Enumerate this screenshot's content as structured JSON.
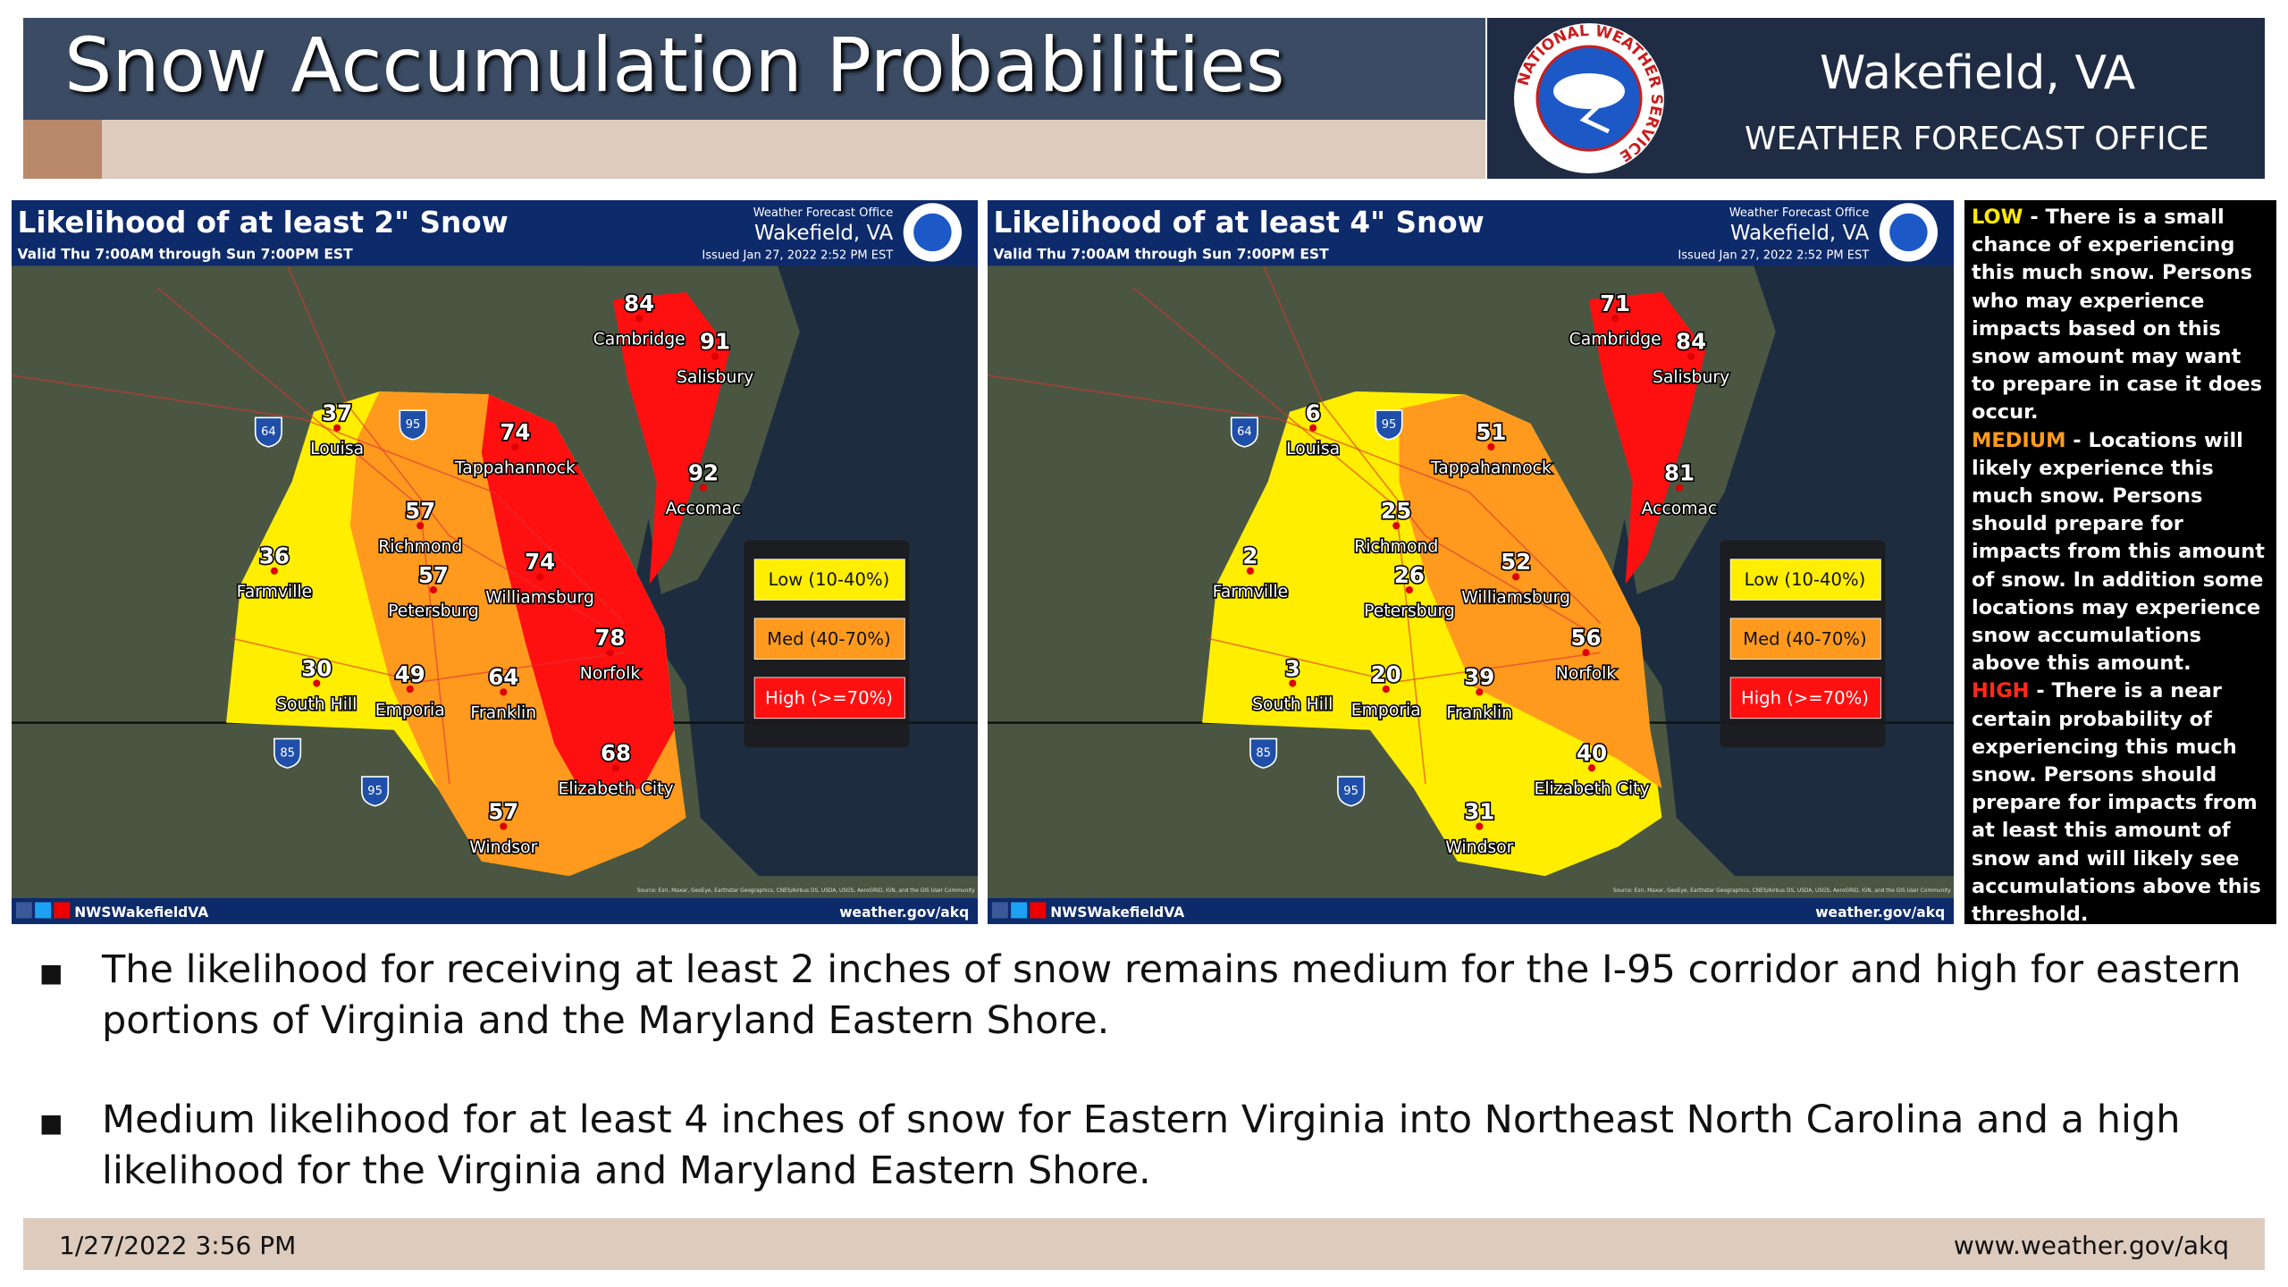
{
  "header": {
    "title": "Snow Accumulation Probabilities",
    "office": "Wakefield, VA",
    "subtitle": "WEATHER FORECAST OFFICE",
    "logo_text": "NATIONAL WEATHER SERVICE"
  },
  "maps": [
    {
      "title": "Likelihood of at least 2\" Snow",
      "valid": "Valid Thu 7:00AM through Sun 7:00PM EST",
      "office_label": "Weather Forecast Office",
      "office_name": "Wakefield, VA",
      "issued": "Issued Jan 27, 2022 2:52 PM EST",
      "legend": [
        "Low (10-40%)",
        "Med (40-70%)",
        "High (>=70%)"
      ],
      "shields": [
        "64",
        "95",
        "85",
        "95"
      ],
      "places": [
        {
          "name": "Cambridge",
          "value": 84
        },
        {
          "name": "Salisbury",
          "value": 91
        },
        {
          "name": "Louisa",
          "value": 37
        },
        {
          "name": "Tappahannock",
          "value": 74
        },
        {
          "name": "Accomac",
          "value": 92
        },
        {
          "name": "Richmond",
          "value": 57
        },
        {
          "name": "Farmville",
          "value": 36
        },
        {
          "name": "Petersburg",
          "value": 57
        },
        {
          "name": "Williamsburg",
          "value": 74
        },
        {
          "name": "Norfolk",
          "value": 78
        },
        {
          "name": "South Hill",
          "value": 30
        },
        {
          "name": "Emporia",
          "value": 49
        },
        {
          "name": "Franklin",
          "value": 64
        },
        {
          "name": "Elizabeth City",
          "value": 68
        },
        {
          "name": "Windsor",
          "value": 57
        }
      ],
      "credit": "Source: Esri, Maxar, GeoEye, Earthstar Geographics, CNES/Airbus DS, USDA, USGS, AeroGRID, IGN, and the GIS User Community",
      "social": "NWSWakefieldVA",
      "url": "weather.gov/akq"
    },
    {
      "title": "Likelihood of at least 4\" Snow",
      "valid": "Valid Thu 7:00AM through Sun 7:00PM EST",
      "office_label": "Weather Forecast Office",
      "office_name": "Wakefield, VA",
      "issued": "Issued Jan 27, 2022 2:52 PM EST",
      "legend": [
        "Low (10-40%)",
        "Med (40-70%)",
        "High (>=70%)"
      ],
      "shields": [
        "64",
        "95",
        "85",
        "95"
      ],
      "places": [
        {
          "name": "Cambridge",
          "value": 71
        },
        {
          "name": "Salisbury",
          "value": 84
        },
        {
          "name": "Louisa",
          "value": 6
        },
        {
          "name": "Tappahannock",
          "value": 51
        },
        {
          "name": "Accomac",
          "value": 81
        },
        {
          "name": "Richmond",
          "value": 25
        },
        {
          "name": "Farmville",
          "value": 2
        },
        {
          "name": "Petersburg",
          "value": 26
        },
        {
          "name": "Williamsburg",
          "value": 52
        },
        {
          "name": "Norfolk",
          "value": 56
        },
        {
          "name": "South Hill",
          "value": 3
        },
        {
          "name": "Emporia",
          "value": 20
        },
        {
          "name": "Franklin",
          "value": 39
        },
        {
          "name": "Elizabeth City",
          "value": 40
        },
        {
          "name": "Windsor",
          "value": 31
        }
      ],
      "credit": "Source: Esri, Maxar, GeoEye, Earthstar Geographics, CNES/Airbus DS, USDA, USGS, AeroGRID, IGN, and the GIS User Community",
      "social": "NWSWakefieldVA",
      "url": "weather.gov/akq"
    }
  ],
  "notes": [
    {
      "term": "LOW",
      "text": " - There is a small chance of experiencing this much snow. Persons who may experience impacts based on this snow amount may want to prepare in case it does occur."
    },
    {
      "term": "MEDIUM",
      "text": " - Locations will likely experience this much snow. Persons should prepare for impacts from this amount of snow. In addition some locations may experience snow accumulations above this amount."
    },
    {
      "term": "HIGH",
      "text": " - There is a near certain probability of experiencing this much snow. Persons should prepare for impacts from at least this amount of snow and will likely see accumulations above this threshold."
    }
  ],
  "bullets": [
    "The likelihood for receiving at least 2 inches of snow remains medium for the I-95 corridor and high for eastern portions of Virginia and the Maryland Eastern Shore.",
    "Medium likelihood for at least 4 inches of snow for Eastern Virginia into Northeast North Carolina and a high likelihood for the Virginia and Maryland Eastern Shore."
  ],
  "footer": {
    "date": "1/27/2022 3:56 PM",
    "url": "www.weather.gov/akq"
  }
}
